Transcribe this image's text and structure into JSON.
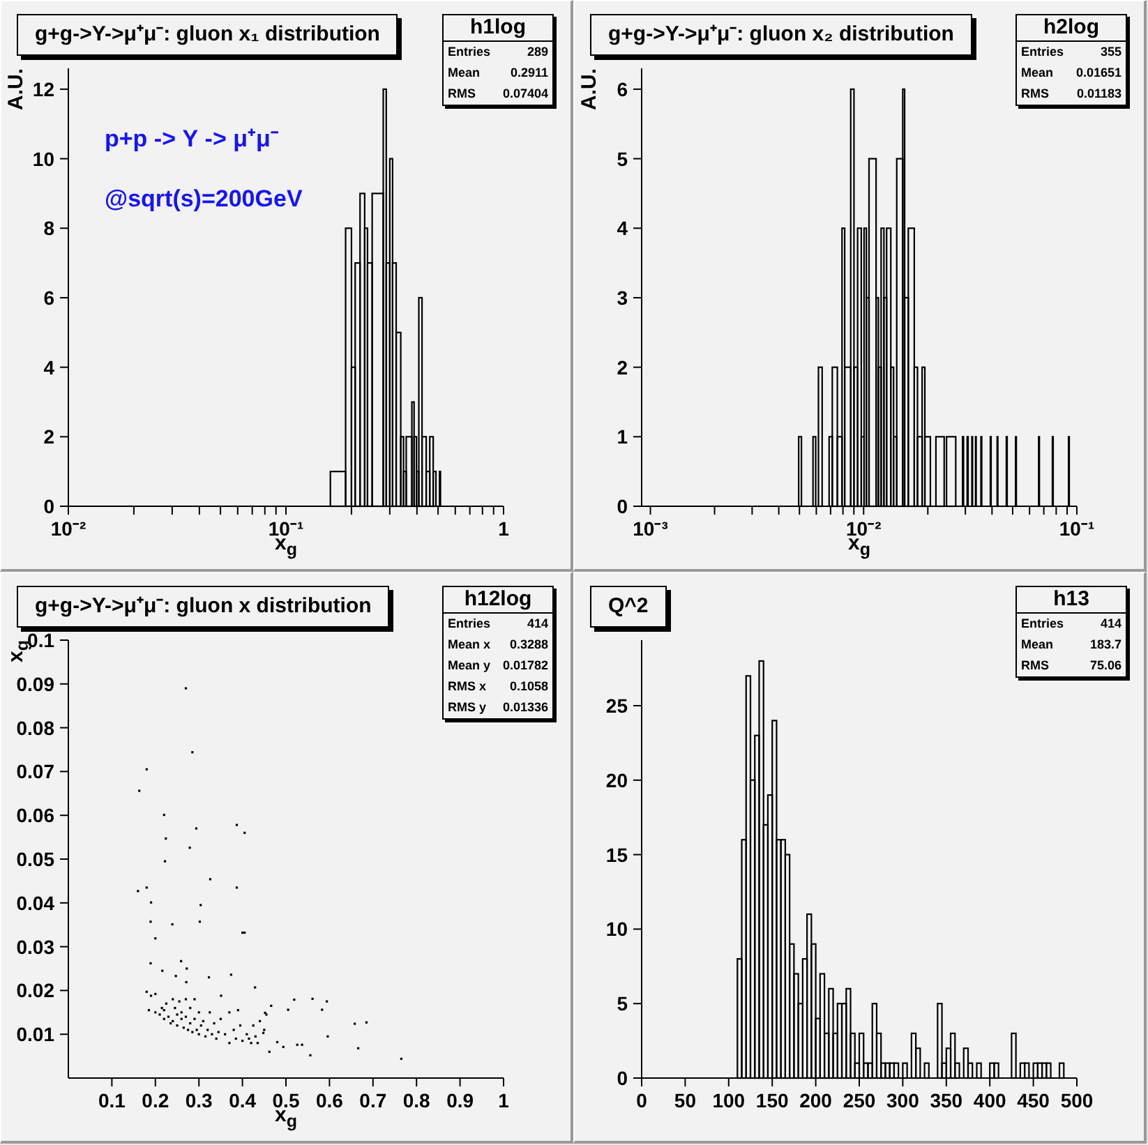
{
  "chart_data": [
    {
      "type": "histogram",
      "title": "g+g->Υ->μ⁺μ⁻: gluon x₁ distribution",
      "xlabel": "x$_{g}$",
      "ylabel": "A.U.",
      "annotations": [
        "h1log",
        "Entries 289",
        "Mean 0.2911",
        "RMS 0.07404",
        "p+p -> Υ -> μ⁺μ⁻",
        "@sqrt(s)=200GeV"
      ],
      "bins": [
        0.16,
        0.188,
        0.2,
        0.208,
        0.219,
        0.23,
        0.237,
        0.249,
        0.28,
        0.289,
        0.3,
        0.309,
        0.321,
        0.337,
        0.347,
        0.357,
        0.379,
        0.388,
        0.398,
        0.408,
        0.422,
        0.441,
        0.458,
        0.475,
        0.489,
        0.508,
        0.513
      ],
      "values": [
        1,
        8,
        4,
        7,
        9,
        8,
        7,
        9,
        12,
        7,
        10,
        7,
        5,
        2,
        1,
        2,
        3,
        2,
        1,
        6,
        2,
        1,
        2,
        1,
        0,
        1
      ],
      "color": "#000000",
      "log": "x",
      "xlim": [
        0.01,
        1
      ],
      "xticks": [
        {
          "value": 0.01,
          "label": "10⁻²"
        },
        {
          "value": 0.02,
          "label": null
        },
        {
          "value": 0.03,
          "label": null
        },
        {
          "value": 0.04,
          "label": null
        },
        {
          "value": 0.05,
          "label": null
        },
        {
          "value": 0.06,
          "label": null
        },
        {
          "value": 0.07,
          "label": null
        },
        {
          "value": 0.08,
          "label": null
        },
        {
          "value": 0.09,
          "label": null
        },
        {
          "value": 0.1,
          "label": "10⁻¹"
        },
        {
          "value": 0.2,
          "label": null
        },
        {
          "value": 0.3,
          "label": null
        },
        {
          "value": 0.4,
          "label": null
        },
        {
          "value": 0.5,
          "label": null
        },
        {
          "value": 0.6,
          "label": null
        },
        {
          "value": 0.7,
          "label": null
        },
        {
          "value": 0.8,
          "label": null
        },
        {
          "value": 0.9,
          "label": null
        },
        1
      ],
      "ylim": [
        0,
        12.6
      ],
      "yticks": [
        0,
        2,
        4,
        6,
        8,
        10,
        12
      ]
    },
    {
      "type": "histogram",
      "title": "g+g->Υ->μ⁺μ⁻: gluon x₂ distribution",
      "xlabel": "x$_{g}$",
      "ylabel": "A.U.",
      "annotations": [
        "h2log",
        "Entries 355",
        "Mean 0.01651",
        "RMS 0.01183"
      ],
      "bins": [
        0.00496,
        0.00511,
        0.00579,
        0.00596,
        0.00614,
        0.00639,
        0.00689,
        0.00713,
        0.00753,
        0.00792,
        0.00815,
        0.0087,
        0.00901,
        0.00937,
        0.00975,
        0.01005,
        0.0103,
        0.0106,
        0.01144,
        0.01173,
        0.01208,
        0.01245,
        0.01282,
        0.01341,
        0.01382,
        0.0143,
        0.01526,
        0.01557,
        0.0162,
        0.01728,
        0.01789,
        0.01881,
        0.01937,
        0.02056,
        0.02183,
        0.02387,
        0.02448,
        0.02704,
        0.0291,
        0.0294,
        0.0306,
        0.0309,
        0.0322,
        0.0324,
        0.0335,
        0.0337,
        0.0355,
        0.0358,
        0.0393,
        0.0396,
        0.0423,
        0.0426,
        0.0467,
        0.0471,
        0.0516,
        0.052,
        0.0662,
        0.0667,
        0.0768,
        0.0774,
        0.0914,
        0.0921
      ],
      "values": [
        1,
        0,
        1,
        0,
        2,
        0,
        1,
        2,
        1,
        4,
        2,
        6,
        2,
        4,
        1,
        4,
        3,
        5,
        3,
        2,
        4,
        3,
        4,
        2,
        1,
        5,
        6,
        3,
        4,
        2,
        1,
        2,
        1,
        0,
        1,
        0,
        1,
        0,
        1,
        0,
        1,
        0,
        1,
        0,
        1,
        0,
        1,
        0,
        1,
        0,
        1,
        0,
        1,
        0,
        1,
        0,
        1,
        0,
        1,
        0,
        1
      ],
      "color": "#000000",
      "log": "x",
      "xlim": [
        0.00091,
        0.1
      ],
      "xticks": [
        {
          "value": 0.001,
          "label": "10⁻³"
        },
        {
          "value": 0.002,
          "label": null
        },
        {
          "value": 0.003,
          "label": null
        },
        {
          "value": 0.004,
          "label": null
        },
        {
          "value": 0.005,
          "label": null
        },
        {
          "value": 0.006,
          "label": null
        },
        {
          "value": 0.007,
          "label": null
        },
        {
          "value": 0.008,
          "label": null
        },
        {
          "value": 0.009,
          "label": null
        },
        {
          "value": 0.01,
          "label": "10⁻²"
        },
        {
          "value": 0.02,
          "label": null
        },
        {
          "value": 0.03,
          "label": null
        },
        {
          "value": 0.04,
          "label": null
        },
        {
          "value": 0.05,
          "label": null
        },
        {
          "value": 0.06,
          "label": null
        },
        {
          "value": 0.07,
          "label": null
        },
        {
          "value": 0.08,
          "label": null
        },
        {
          "value": 0.09,
          "label": null
        },
        {
          "value": 0.1,
          "label": "10⁻¹"
        }
      ],
      "ylim": [
        0,
        6.3
      ],
      "yticks": [
        0,
        1,
        2,
        3,
        4,
        5,
        6
      ]
    },
    {
      "type": "scatter",
      "title": "g+g->Υ->μ⁺μ⁻: gluon x distribution",
      "xlabel": "x$_{g}$",
      "ylabel": "x$_{g}$",
      "annotations": [
        "h12log",
        "Entries 414",
        "Mean x 0.3288",
        "Mean y 0.01782",
        "RMS x 0.1058",
        "RMS y 0.01336"
      ],
      "x": [
        0.27,
        0.285,
        0.18,
        0.163,
        0.22,
        0.224,
        0.222,
        0.294,
        0.279,
        0.387,
        0.405,
        0.326,
        0.304,
        0.302,
        0.16,
        0.18,
        0.19,
        0.189,
        0.2,
        0.239,
        0.387,
        0.4,
        0.405,
        0.189,
        0.259,
        0.272,
        0.216,
        0.247,
        0.271,
        0.323,
        0.374,
        0.429,
        0.351,
        0.452,
        0.466,
        0.505,
        0.519,
        0.561,
        0.594,
        0.583,
        0.658,
        0.685,
        0.596,
        0.666,
        0.765,
        0.556,
        0.526,
        0.537,
        0.48,
        0.494,
        0.462,
        0.448,
        0.18,
        0.19,
        0.2,
        0.185,
        0.2,
        0.21,
        0.215,
        0.22,
        0.22,
        0.225,
        0.23,
        0.235,
        0.24,
        0.24,
        0.245,
        0.25,
        0.25,
        0.255,
        0.26,
        0.26,
        0.265,
        0.27,
        0.27,
        0.275,
        0.28,
        0.28,
        0.285,
        0.29,
        0.29,
        0.295,
        0.3,
        0.3,
        0.305,
        0.31,
        0.315,
        0.32,
        0.325,
        0.33,
        0.335,
        0.34,
        0.345,
        0.35,
        0.36,
        0.37,
        0.37,
        0.38,
        0.385,
        0.39,
        0.395,
        0.4,
        0.41,
        0.415,
        0.42,
        0.425,
        0.43,
        0.435,
        0.44,
        0.45,
        0.455
      ],
      "values": [
        0.089,
        0.0744,
        0.0705,
        0.0656,
        0.0601,
        0.0547,
        0.0495,
        0.057,
        0.0526,
        0.0578,
        0.056,
        0.0454,
        0.0395,
        0.0357,
        0.0427,
        0.0435,
        0.0401,
        0.0357,
        0.0319,
        0.0351,
        0.0435,
        0.0332,
        0.0332,
        0.0262,
        0.0267,
        0.025,
        0.0245,
        0.0233,
        0.0219,
        0.023,
        0.0236,
        0.0207,
        0.0188,
        0.0149,
        0.0165,
        0.0156,
        0.0179,
        0.0181,
        0.0175,
        0.0156,
        0.0124,
        0.0127,
        0.0095,
        0.0068,
        0.0044,
        0.0052,
        0.0076,
        0.0076,
        0.0082,
        0.0071,
        0.006,
        0.0103,
        0.0197,
        0.0188,
        0.0192,
        0.0155,
        0.015,
        0.0145,
        0.016,
        0.0135,
        0.0155,
        0.017,
        0.014,
        0.0125,
        0.018,
        0.013,
        0.016,
        0.0145,
        0.012,
        0.0175,
        0.0135,
        0.015,
        0.0115,
        0.018,
        0.014,
        0.011,
        0.016,
        0.0125,
        0.0105,
        0.018,
        0.0135,
        0.011,
        0.015,
        0.01,
        0.012,
        0.013,
        0.0095,
        0.011,
        0.015,
        0.01,
        0.0125,
        0.009,
        0.0105,
        0.0135,
        0.01,
        0.015,
        0.008,
        0.011,
        0.009,
        0.0155,
        0.012,
        0.0085,
        0.01,
        0.009,
        0.008,
        0.012,
        0.0095,
        0.008,
        0.013,
        0.011,
        0.0145
      ],
      "color": "#000000",
      "marker": "square",
      "xlim": [
        0,
        1
      ],
      "xticks": [
        0.1,
        0.2,
        0.3,
        0.4,
        0.5,
        0.6,
        0.7,
        0.8,
        0.9,
        1
      ],
      "ylim": [
        0,
        0.1
      ],
      "yticks": [
        0.01,
        0.02,
        0.03,
        0.04,
        0.05,
        0.06,
        0.07,
        0.08,
        0.09,
        0.1
      ]
    },
    {
      "type": "histogram",
      "title": "Q^2",
      "annotations": [
        "h13",
        "Entries 414",
        "Mean 183.7",
        "RMS 75.06"
      ],
      "bins": [
        110,
        115,
        120,
        125,
        130,
        135,
        140,
        145,
        150,
        155,
        160,
        165,
        170,
        175,
        180,
        185,
        190,
        195,
        200,
        205,
        210,
        215,
        220,
        225,
        230,
        235,
        240,
        245,
        250,
        255,
        260,
        265,
        270,
        275,
        280,
        285,
        290,
        295,
        300,
        305,
        310,
        315,
        320,
        325,
        330,
        335,
        340,
        345,
        350,
        355,
        360,
        365,
        370,
        375,
        380,
        385,
        390,
        395,
        400,
        405,
        410,
        415,
        420,
        425,
        430,
        435,
        440,
        445,
        450,
        455,
        460,
        465,
        470,
        475,
        480,
        485,
        490
      ],
      "values": [
        8,
        16,
        27,
        20,
        23,
        28,
        17,
        19,
        24,
        16,
        16,
        15,
        9,
        7,
        5,
        8,
        11,
        9,
        4,
        7,
        3,
        6,
        3,
        5,
        5,
        6,
        3,
        1,
        3,
        1,
        1,
        5,
        3,
        1,
        1,
        1,
        1,
        0,
        1,
        0,
        3,
        2,
        0,
        1,
        0,
        0,
        5,
        1,
        2,
        3,
        1,
        0,
        2,
        1,
        0,
        1,
        0,
        0,
        1,
        1,
        0,
        0,
        0,
        3,
        0,
        1,
        1,
        0,
        1,
        1,
        1,
        1,
        0,
        0,
        1,
        0
      ],
      "color": "#000000",
      "xlim": [
        0,
        500
      ],
      "xticks": [
        0,
        50,
        100,
        150,
        200,
        250,
        300,
        350,
        400,
        450,
        500
      ],
      "ylim": [
        0,
        29.4
      ],
      "yticks": [
        0,
        5,
        10,
        15,
        20,
        25
      ]
    }
  ]
}
